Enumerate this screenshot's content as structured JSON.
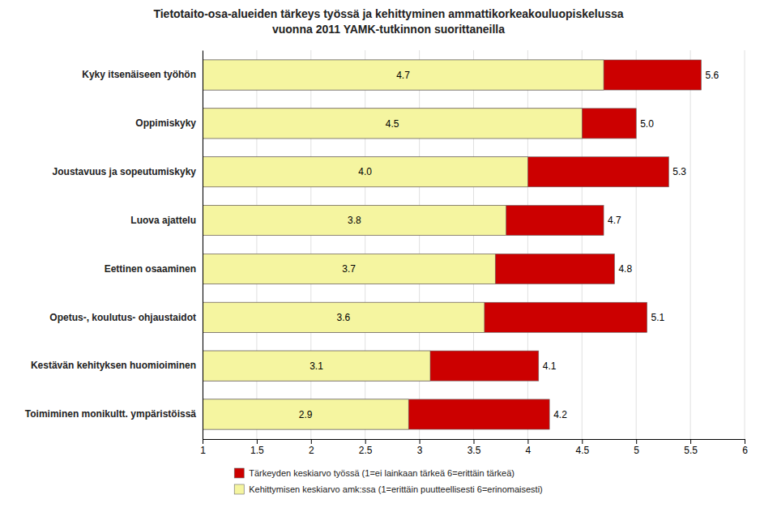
{
  "chart_data": {
    "type": "bar",
    "orientation": "horizontal",
    "title": "Tietotaito-osa-alueiden tärkeys työssä ja kehittyminen ammattikorkeakouluopiskelussa\nvuonna 2011 YAMK-tutkinnon suorittaneilla",
    "categories": [
      "Kyky itsenäiseen työhön",
      "Oppimiskyky",
      "Joustavuus ja sopeutumiskyky",
      "Luova ajattelu",
      "Eettinen osaaminen",
      "Opetus-, koulutus- ohjaustaidot",
      "Kestävän kehityksen huomioiminen",
      "Toimiminen monikultt. ympäristöissä"
    ],
    "series": [
      {
        "name": "Tärkeyden keskiarvo työssä (1=ei lainkaan tärkeä 6=erittäin tärkeä)",
        "color": "#CC0000",
        "values": [
          5.6,
          5.0,
          5.3,
          4.7,
          4.8,
          5.1,
          4.1,
          4.2
        ],
        "value_labels": [
          "5.6",
          "5.0",
          "5.3",
          "4.7",
          "4.8",
          "5.1",
          "4.1",
          "4.2"
        ]
      },
      {
        "name": "Kehittymisen keskiarvo amk:ssa (1=erittäin puutteellisesti 6=erinomaisesti)",
        "color": "#F5F5A0",
        "values": [
          4.7,
          4.5,
          4.0,
          3.8,
          3.7,
          3.6,
          3.1,
          2.9
        ],
        "value_labels": [
          "4.7",
          "4.5",
          "4.0",
          "3.8",
          "3.7",
          "3.6",
          "3.1",
          "2.9"
        ]
      }
    ],
    "xlim": [
      1,
      6
    ],
    "xticks": [
      1,
      1.5,
      2,
      2.5,
      3,
      3.5,
      4,
      4.5,
      5,
      5.5,
      6
    ],
    "grid": true,
    "data_labels": true,
    "legend": "bottom"
  }
}
